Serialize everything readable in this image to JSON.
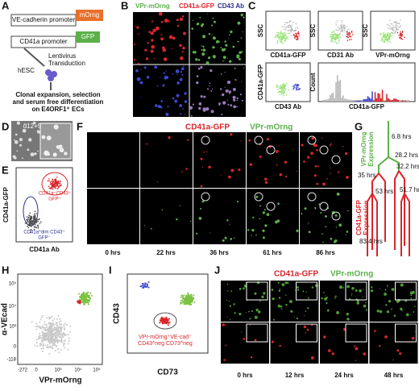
{
  "panel_a": {
    "label": "A",
    "ve_promoter": "VE-cadherin promoter",
    "morng": "mOrng",
    "cd41_promoter": "CD41a promoter",
    "gfp": "GFP",
    "lenti": [
      "Lentivirus",
      "Transduction"
    ],
    "hesc": "hESC",
    "caption": [
      "Clonal expansion, selection",
      "and serum free differentiation",
      "on E4ORF1⁺ ECs"
    ]
  },
  "panel_b": {
    "label": "B",
    "ch1": "VPr-mOrng",
    "ch2": "CD41a-GFP",
    "ch3": "CD43 Ab"
  },
  "panel_c": {
    "label": "C",
    "plots": [
      {
        "y": "SSC",
        "x": "CD41a-GFP"
      },
      {
        "y": "SSC",
        "x": "CD31 Ab"
      },
      {
        "y": "SSC",
        "x": "VPr-mOrng"
      },
      {
        "y": "CD41a-GFP",
        "x": "CD43 Ab"
      },
      {
        "y": "Count",
        "x": "CD41a-GFP"
      }
    ]
  },
  "panel_d": {
    "label": "D",
    "stage": "d12+5"
  },
  "panel_e": {
    "label": "E",
    "y": "CD41a-GFP",
    "x": "CD41a Ab",
    "gate1": [
      "CD41a⁺CD43⁺",
      "GFP⁺"
    ],
    "gate2": [
      "CD41a^dim CD43⁺",
      "GFP⁻"
    ]
  },
  "panel_f": {
    "label": "F",
    "ch1": "CD41a-GFP",
    "ch2": "VPr-mOrng",
    "times": [
      "0 hrs",
      "22 hrs",
      "36 hrs",
      "61 hrs",
      "86 hrs"
    ]
  },
  "panel_g": {
    "label": "G",
    "top": [
      "VPr-mOrng",
      "Expression"
    ],
    "bottom": [
      "CD41a-GFP",
      "Expression"
    ],
    "times": [
      "6.8 hrs",
      "28.2 hrs",
      "32.2 hrs",
      "35 hrs",
      "53 hrs",
      "51.7 hrs",
      "83.4 hrs"
    ]
  },
  "panel_h": {
    "label": "H",
    "y": "α-VEcad",
    "x": "VPr-mOrng",
    "xticks": [
      "-272",
      "0",
      "10³",
      "10⁴",
      "10⁵"
    ],
    "yticks": [
      "-118",
      "0",
      "10³",
      "10⁴",
      "10⁵"
    ]
  },
  "panel_i": {
    "label": "I",
    "y": "CD43",
    "x": "CD73",
    "gate": [
      "VPr-mOrng⁺VE-cad⁺",
      "CD43^neg CD73^neg"
    ]
  },
  "panel_j": {
    "label": "J",
    "ch1": "CD41a-GFP",
    "ch2": "VPr-mOrng",
    "times": [
      "0 hrs",
      "12 hrs",
      "24 hrs",
      "48 hrs"
    ]
  }
}
